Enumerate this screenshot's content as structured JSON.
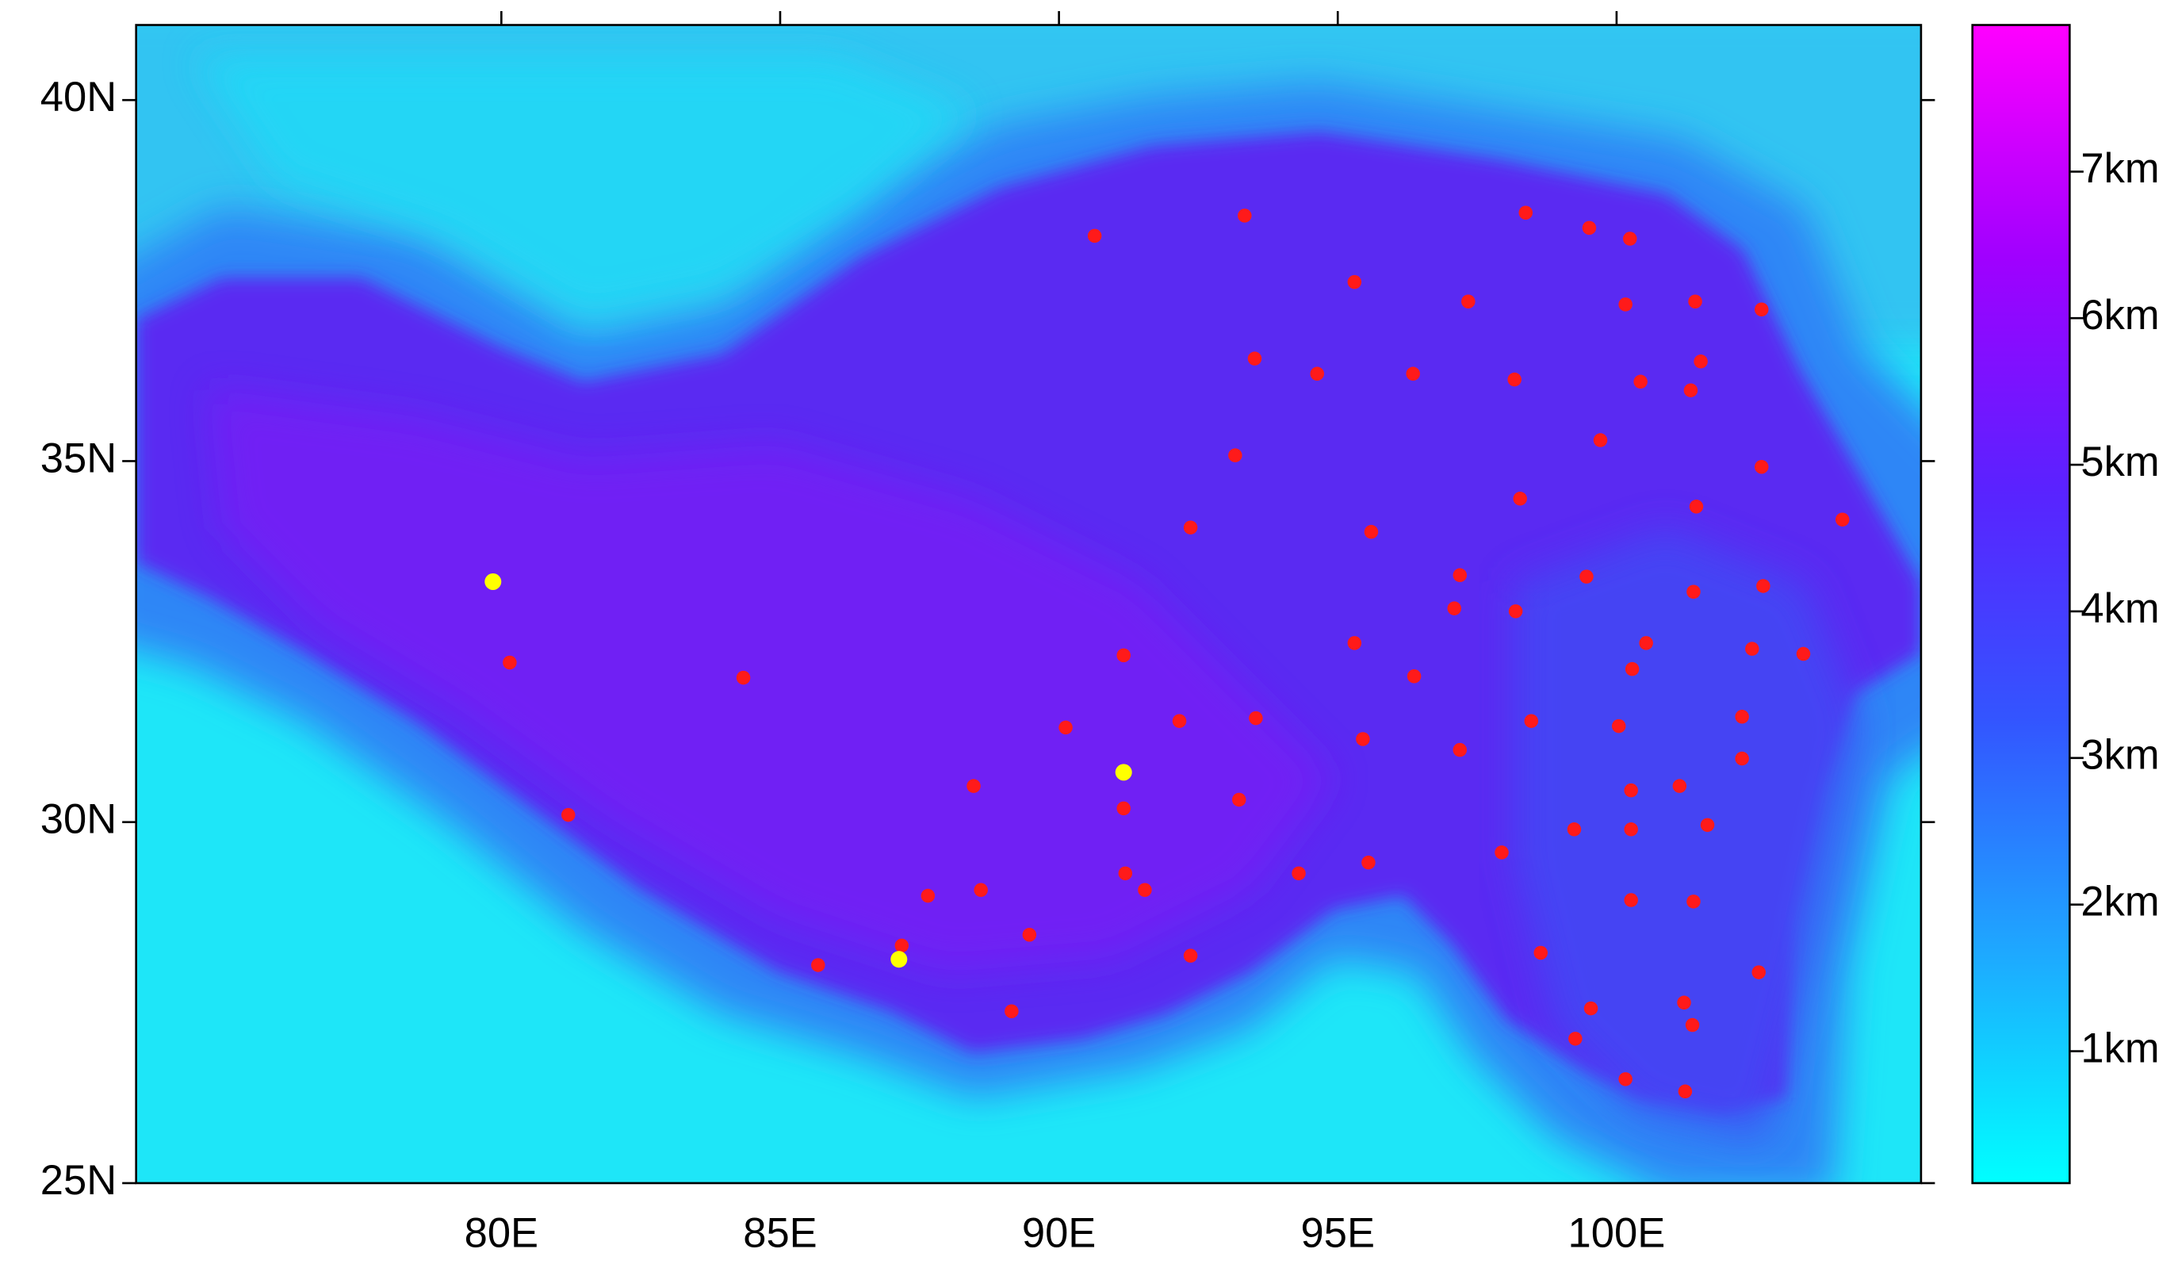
{
  "chart_data": {
    "type": "scatter",
    "xlim": [
      73.45,
      105.46
    ],
    "ylim": [
      25,
      41.04
    ],
    "xticks": [
      {
        "value": 80,
        "label": "80E"
      },
      {
        "value": 85,
        "label": "85E"
      },
      {
        "value": 90,
        "label": "90E"
      },
      {
        "value": 95,
        "label": "95E"
      },
      {
        "value": 100,
        "label": "100E"
      }
    ],
    "yticks": [
      {
        "value": 25,
        "label": "25N"
      },
      {
        "value": 30,
        "label": "30N"
      },
      {
        "value": 35,
        "label": "35N"
      },
      {
        "value": 40,
        "label": "40N"
      }
    ],
    "colorbar": {
      "clim": [
        0.1,
        8
      ],
      "colormap": [
        "#00ffff",
        "#1ea8ff",
        "#3355ff",
        "#5a22ff",
        "#a000ff",
        "#ff00ff"
      ],
      "ticks": [
        {
          "value": 1,
          "label": "1km"
        },
        {
          "value": 2,
          "label": "2km"
        },
        {
          "value": 3,
          "label": "3km"
        },
        {
          "value": 4,
          "label": "4km"
        },
        {
          "value": 5,
          "label": "5km"
        },
        {
          "value": 6,
          "label": "6km"
        },
        {
          "value": 7,
          "label": "7km"
        }
      ]
    },
    "series": [
      {
        "color": "#ff1a1a",
        "x": [
          90.64,
          93.33,
          98.37,
          99.51,
          100.24,
          95.3,
          97.34,
          100.16,
          101.41,
          102.6,
          93.51,
          94.63,
          96.35,
          98.17,
          100.43,
          101.51,
          101.33,
          99.71,
          93.16,
          102.6,
          98.27,
          101.43,
          104.05,
          92.36,
          95.6,
          97.19,
          99.46,
          102.63,
          101.38,
          97.09,
          98.19,
          80.15,
          84.34,
          91.16,
          95.3,
          100.53,
          102.43,
          103.35,
          100.28,
          96.37,
          102.25,
          92.16,
          93.53,
          90.12,
          98.47,
          100.04,
          95.45,
          97.19,
          102.25,
          88.47,
          93.23,
          100.26,
          101.13,
          81.2,
          91.16,
          99.24,
          100.26,
          101.63,
          97.94,
          95.55,
          91.19,
          94.3,
          91.54,
          88.6,
          87.65,
          100.26,
          101.38,
          89.47,
          87.18,
          98.64,
          92.36,
          85.68,
          102.55,
          101.21,
          99.54,
          89.15,
          101.36,
          99.26,
          100.16,
          101.23
        ],
        "y": [
          38.12,
          38.4,
          38.44,
          38.23,
          38.08,
          37.48,
          37.21,
          37.17,
          37.21,
          37.1,
          36.42,
          36.21,
          36.21,
          36.13,
          36.1,
          36.38,
          35.98,
          35.29,
          35.08,
          34.92,
          34.48,
          34.37,
          34.19,
          34.08,
          34.02,
          33.42,
          33.4,
          33.27,
          33.19,
          32.96,
          32.92,
          32.21,
          32.0,
          32.31,
          32.48,
          32.48,
          32.4,
          32.33,
          32.12,
          32.02,
          31.46,
          31.4,
          31.44,
          31.31,
          31.4,
          31.33,
          31.15,
          31.0,
          30.88,
          30.5,
          30.31,
          30.44,
          30.5,
          30.1,
          30.19,
          29.9,
          29.9,
          29.96,
          29.58,
          29.44,
          29.29,
          29.29,
          29.06,
          29.06,
          28.98,
          28.92,
          28.9,
          28.44,
          28.29,
          28.19,
          28.15,
          28.02,
          27.92,
          27.5,
          27.42,
          27.38,
          27.19,
          27.0,
          26.44,
          26.27
        ]
      },
      {
        "color": "#ffff00",
        "x": [
          79.85,
          91.16,
          87.13
        ],
        "y": [
          33.33,
          30.69,
          28.1
        ]
      }
    ]
  }
}
